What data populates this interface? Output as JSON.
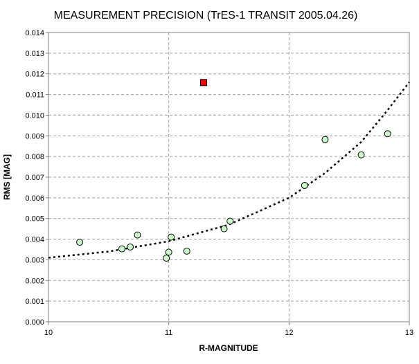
{
  "chart_data": {
    "type": "scatter",
    "title": "MEASUREMENT PRECISION (TrES-1 TRANSIT 2005.04.26)",
    "xlabel": "R-MAGNITUDE",
    "ylabel": "RMS [MAG]",
    "xlim": [
      10,
      13
    ],
    "ylim": [
      0,
      0.014
    ],
    "x_ticks": [
      "10",
      "11",
      "12",
      "13"
    ],
    "y_ticks": [
      "0.000",
      "0.001",
      "0.002",
      "0.003",
      "0.004",
      "0.005",
      "0.006",
      "0.007",
      "0.008",
      "0.009",
      "0.010",
      "0.011",
      "0.012",
      "0.013",
      "0.014"
    ],
    "grid": true,
    "series": [
      {
        "marker": "circle",
        "color": "#ccffcc",
        "points": [
          {
            "x": 10.26,
            "y": 0.00385
          },
          {
            "x": 10.61,
            "y": 0.00353
          },
          {
            "x": 10.68,
            "y": 0.00362
          },
          {
            "x": 10.74,
            "y": 0.0042
          },
          {
            "x": 10.98,
            "y": 0.00308
          },
          {
            "x": 11.0,
            "y": 0.00337
          },
          {
            "x": 11.02,
            "y": 0.0041
          },
          {
            "x": 11.15,
            "y": 0.00342
          },
          {
            "x": 11.46,
            "y": 0.0045
          },
          {
            "x": 11.51,
            "y": 0.00487
          },
          {
            "x": 12.13,
            "y": 0.0066
          },
          {
            "x": 12.3,
            "y": 0.00882
          },
          {
            "x": 12.6,
            "y": 0.00808
          },
          {
            "x": 12.82,
            "y": 0.0091
          }
        ]
      },
      {
        "marker": "square",
        "color": "#ff0000",
        "points": [
          {
            "x": 11.29,
            "y": 0.01158
          }
        ]
      }
    ],
    "trend": {
      "style": "dotted",
      "color": "#000000",
      "points": [
        {
          "x": 10.0,
          "y": 0.0031
        },
        {
          "x": 10.5,
          "y": 0.0034
        },
        {
          "x": 11.0,
          "y": 0.0039
        },
        {
          "x": 11.5,
          "y": 0.0047
        },
        {
          "x": 12.0,
          "y": 0.006
        },
        {
          "x": 12.3,
          "y": 0.0072
        },
        {
          "x": 12.6,
          "y": 0.0087
        },
        {
          "x": 12.8,
          "y": 0.0101
        },
        {
          "x": 13.0,
          "y": 0.0116
        }
      ]
    }
  }
}
